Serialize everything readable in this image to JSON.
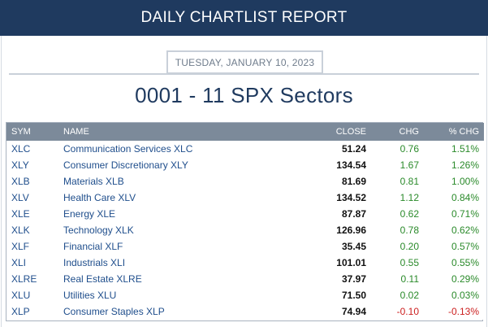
{
  "header": {
    "title": "DAILY CHARTLIST REPORT"
  },
  "report": {
    "date": "TUESDAY, JANUARY 10, 2023",
    "title": "0001 - 11 SPX Sectors"
  },
  "table": {
    "columns": {
      "sym": "SYM",
      "name": "NAME",
      "close": "CLOSE",
      "chg": "CHG",
      "pct_chg": "% CHG"
    },
    "rows": [
      {
        "sym": "XLC",
        "name": "Communication Services XLC",
        "close": "51.24",
        "chg": "0.76",
        "pct_chg": "1.51%",
        "direction": "up"
      },
      {
        "sym": "XLY",
        "name": "Consumer Discretionary XLY",
        "close": "134.54",
        "chg": "1.67",
        "pct_chg": "1.26%",
        "direction": "up"
      },
      {
        "sym": "XLB",
        "name": "Materials XLB",
        "close": "81.69",
        "chg": "0.81",
        "pct_chg": "1.00%",
        "direction": "up"
      },
      {
        "sym": "XLV",
        "name": "Health Care XLV",
        "close": "134.52",
        "chg": "1.12",
        "pct_chg": "0.84%",
        "direction": "up"
      },
      {
        "sym": "XLE",
        "name": "Energy XLE",
        "close": "87.87",
        "chg": "0.62",
        "pct_chg": "0.71%",
        "direction": "up"
      },
      {
        "sym": "XLK",
        "name": "Technology XLK",
        "close": "126.96",
        "chg": "0.78",
        "pct_chg": "0.62%",
        "direction": "up"
      },
      {
        "sym": "XLF",
        "name": "Financial XLF",
        "close": "35.45",
        "chg": "0.20",
        "pct_chg": "0.57%",
        "direction": "up"
      },
      {
        "sym": "XLI",
        "name": "Industrials XLI",
        "close": "101.01",
        "chg": "0.55",
        "pct_chg": "0.55%",
        "direction": "up"
      },
      {
        "sym": "XLRE",
        "name": "Real Estate XLRE",
        "close": "37.97",
        "chg": "0.11",
        "pct_chg": "0.29%",
        "direction": "up"
      },
      {
        "sym": "XLU",
        "name": "Utilities XLU",
        "close": "71.50",
        "chg": "0.02",
        "pct_chg": "0.03%",
        "direction": "up"
      },
      {
        "sym": "XLP",
        "name": "Consumer Staples XLP",
        "close": "74.94",
        "chg": "-0.10",
        "pct_chg": "-0.13%",
        "direction": "down"
      }
    ]
  },
  "colors": {
    "header_bg": "#1f3a5f",
    "table_header_bg": "#7c8a9a",
    "link": "#1f4e8c",
    "positive": "#2a8a2a",
    "negative": "#cc1f1f"
  }
}
